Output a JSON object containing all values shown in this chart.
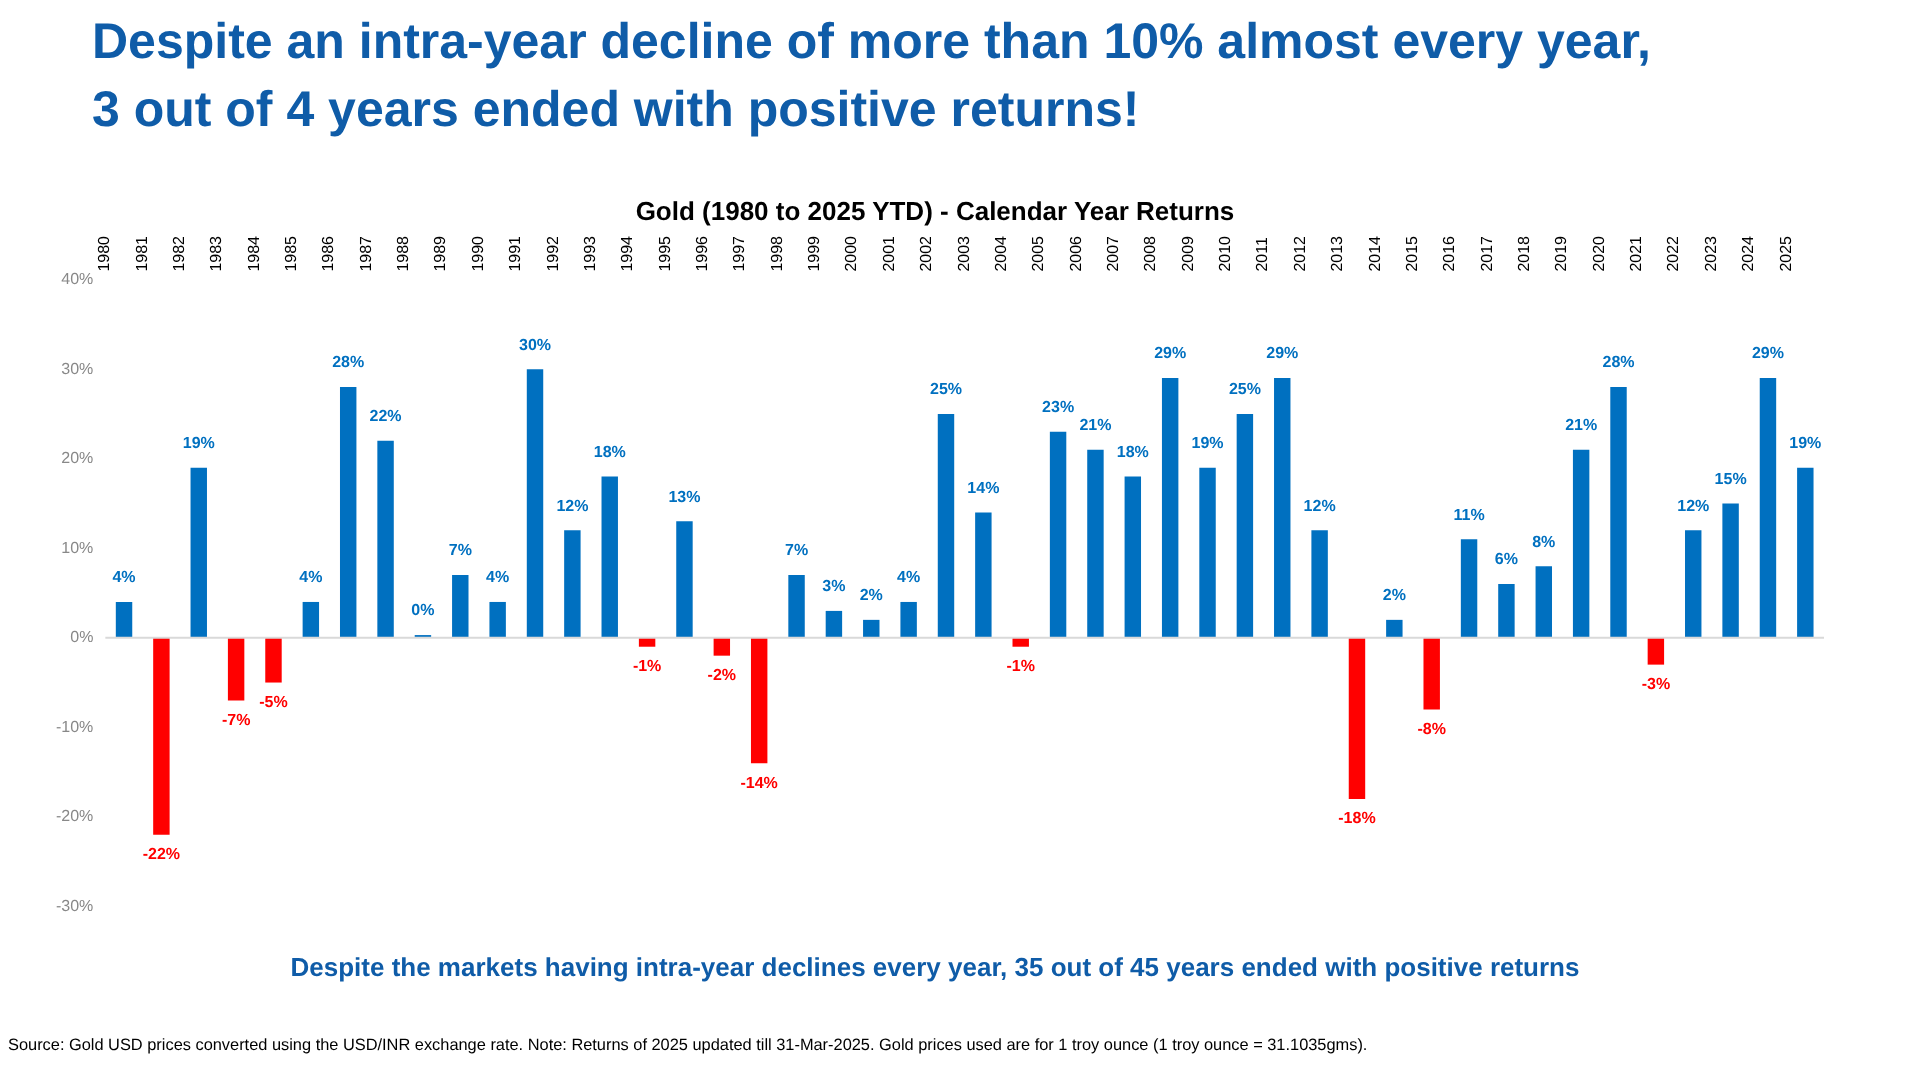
{
  "chart_data": {
    "type": "bar",
    "title": "Despite an intra-year decline of more than 10% almost every year, 3 out of 4 years ended with positive returns!",
    "subtitle": "Gold (1980 to 2025 YTD) - Calendar Year Returns",
    "categories": [
      "1980",
      "1981",
      "1982",
      "1983",
      "1984",
      "1985",
      "1986",
      "1987",
      "1988",
      "1989",
      "1990",
      "1991",
      "1992",
      "1993",
      "1994",
      "1995",
      "1996",
      "1997",
      "1998",
      "1999",
      "2000",
      "2001",
      "2002",
      "2003",
      "2004",
      "2005",
      "2006",
      "2007",
      "2008",
      "2009",
      "2010",
      "2011",
      "2012",
      "2013",
      "2014",
      "2015",
      "2016",
      "2017",
      "2018",
      "2019",
      "2020",
      "2021",
      "2022",
      "2023",
      "2024",
      "2025"
    ],
    "values": [
      4,
      -22,
      19,
      -7,
      -5,
      4,
      28,
      22,
      0.3,
      7,
      4,
      30,
      12,
      18,
      -1,
      13,
      -2,
      -14,
      7,
      3,
      2,
      4,
      25,
      14,
      -1,
      23,
      21,
      18,
      29,
      19,
      25,
      29,
      12,
      -18,
      2,
      -8,
      11,
      6,
      8,
      21,
      28,
      -3,
      12,
      15,
      29,
      19
    ],
    "value_labels": [
      "4%",
      "-22%",
      "19%",
      "-7%",
      "-5%",
      "4%",
      "28%",
      "22%",
      "0%",
      "7%",
      "4%",
      "30%",
      "12%",
      "18%",
      "-1%",
      "13%",
      "-2%",
      "-14%",
      "7%",
      "3%",
      "2%",
      "4%",
      "25%",
      "14%",
      "-1%",
      "23%",
      "21%",
      "18%",
      "29%",
      "19%",
      "25%",
      "29%",
      "12%",
      "-18%",
      "2%",
      "-8%",
      "11%",
      "6%",
      "8%",
      "21%",
      "28%",
      "-3%",
      "12%",
      "15%",
      "29%",
      "19%"
    ],
    "colors": [
      "#0070c0",
      "#ff0000",
      "#0070c0",
      "#ff0000",
      "#ff0000",
      "#0070c0",
      "#0070c0",
      "#0070c0",
      "#0070c0",
      "#0070c0",
      "#0070c0",
      "#0070c0",
      "#0070c0",
      "#0070c0",
      "#ff0000",
      "#0070c0",
      "#ff0000",
      "#ff0000",
      "#0070c0",
      "#0070c0",
      "#0070c0",
      "#0070c0",
      "#0070c0",
      "#0070c0",
      "#ff0000",
      "#0070c0",
      "#0070c0",
      "#0070c0",
      "#0070c0",
      "#0070c0",
      "#0070c0",
      "#0070c0",
      "#0070c0",
      "#ff0000",
      "#0070c0",
      "#ff0000",
      "#0070c0",
      "#0070c0",
      "#0070c0",
      "#0070c0",
      "#0070c0",
      "#ff0000",
      "#0070c0",
      "#0070c0",
      "#0070c0",
      "#0070c0"
    ],
    "ylim": [
      -30,
      40
    ],
    "yticks": [
      {
        "value": -30,
        "label": "-30%"
      },
      {
        "value": -20,
        "label": "-20%"
      },
      {
        "value": -10,
        "label": "-10%"
      },
      {
        "value": 0,
        "label": "0%"
      },
      {
        "value": 10,
        "label": "10%"
      },
      {
        "value": 20,
        "label": "20%"
      },
      {
        "value": 30,
        "label": "30%"
      },
      {
        "value": 40,
        "label": "40%"
      }
    ],
    "grid": false,
    "legend": false,
    "ref_lines": [
      {
        "axis": "y",
        "value": 0,
        "color": "#d9d9d9"
      }
    ],
    "annotations": [
      "Despite the markets having intra-year declines every year, 35 out of 45 years ended with positive returns",
      "Source: Gold USD prices converted using the USD/INR exchange rate. Note: Returns of 2025 updated till 31-Mar-2025. Gold prices used are for 1 troy ounce (1 troy ounce = 31.1035gms)."
    ]
  }
}
